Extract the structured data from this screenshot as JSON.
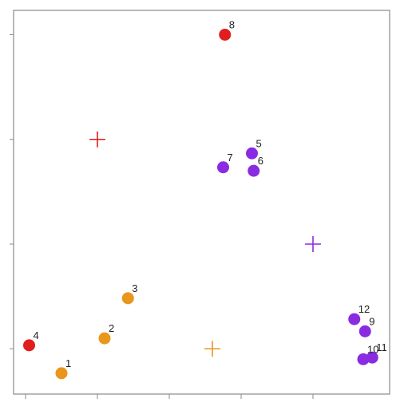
{
  "chart_data": {
    "type": "scatter",
    "title": "",
    "xlabel": "",
    "ylabel": "",
    "xlim": [
      0,
      10
    ],
    "ylim": [
      0,
      10.4
    ],
    "grid": false,
    "x_ticks": [
      0,
      2,
      4,
      6,
      8
    ],
    "y_ticks": [
      1,
      4,
      7,
      10
    ],
    "points": [
      {
        "label": "1",
        "x": 1.0,
        "y": 0.3,
        "color": "#e8961c"
      },
      {
        "label": "2",
        "x": 2.2,
        "y": 1.3,
        "color": "#e8961c"
      },
      {
        "label": "3",
        "x": 2.85,
        "y": 2.45,
        "color": "#e8961c"
      },
      {
        "label": "4",
        "x": 0.1,
        "y": 1.1,
        "color": "#e01e1e"
      },
      {
        "label": "5",
        "x": 6.3,
        "y": 6.6,
        "color": "#8a2be2"
      },
      {
        "label": "6",
        "x": 6.35,
        "y": 6.1,
        "color": "#8a2be2"
      },
      {
        "label": "7",
        "x": 5.5,
        "y": 6.2,
        "color": "#8a2be2"
      },
      {
        "label": "8",
        "x": 5.55,
        "y": 10.0,
        "color": "#e01e1e"
      },
      {
        "label": "9",
        "x": 9.45,
        "y": 1.5,
        "color": "#8a2be2"
      },
      {
        "label": "10",
        "x": 9.4,
        "y": 0.7,
        "color": "#8a2be2"
      },
      {
        "label": "11",
        "x": 9.65,
        "y": 0.75,
        "color": "#8a2be2"
      },
      {
        "label": "12",
        "x": 9.15,
        "y": 1.85,
        "color": "#8a2be2"
      }
    ],
    "centroids": [
      {
        "x": 2.0,
        "y": 7.0,
        "color": "#e01e1e"
      },
      {
        "x": 5.2,
        "y": 1.0,
        "color": "#e8961c"
      },
      {
        "x": 8.0,
        "y": 4.0,
        "color": "#8a2be2"
      }
    ]
  }
}
